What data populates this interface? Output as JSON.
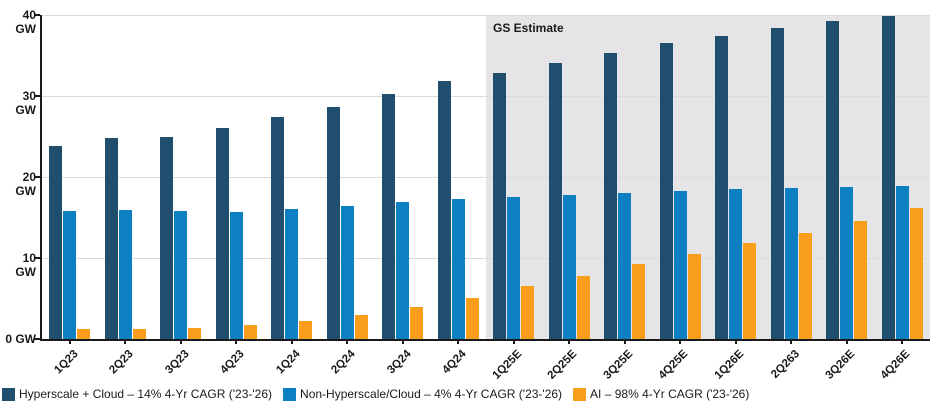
{
  "chart_data": {
    "type": "bar",
    "title": "",
    "xlabel": "",
    "ylabel": "GW",
    "ylim": [
      0,
      40
    ],
    "grid": true,
    "legend_position": "bottom-left",
    "yticks": [
      {
        "value": 0,
        "label": "0 GW"
      },
      {
        "value": 10,
        "label": "10 GW"
      },
      {
        "value": 20,
        "label": "20 GW"
      },
      {
        "value": 30,
        "label": "30 GW"
      },
      {
        "value": 40,
        "label": "40 GW"
      }
    ],
    "categories": [
      "1Q23",
      "2Q23",
      "3Q23",
      "4Q23",
      "1Q24",
      "2Q24",
      "3Q24",
      "4Q24",
      "1Q25E",
      "2Q25E",
      "3Q25E",
      "4Q25E",
      "1Q26E",
      "2Q263",
      "3Q26E",
      "4Q26E"
    ],
    "series": [
      {
        "name": "Hyperscale + Cloud – 14% 4-Yr CAGR ('23-'26)",
        "color": "#1F4E6E",
        "values": [
          23.8,
          24.8,
          25.0,
          26.1,
          27.4,
          28.6,
          30.3,
          31.8,
          32.9,
          34.1,
          35.3,
          36.5,
          37.4,
          38.4,
          39.2,
          39.9
        ]
      },
      {
        "name": "Non-Hyperscale/Cloud – 4% 4-Yr CAGR ('23-'26)",
        "color": "#0C80C2",
        "values": [
          15.8,
          15.9,
          15.8,
          15.7,
          16.0,
          16.4,
          16.9,
          17.3,
          17.5,
          17.8,
          18.0,
          18.3,
          18.5,
          18.6,
          18.8,
          18.9
        ]
      },
      {
        "name": "AI – 98% 4-Yr CAGR ('23-'26)",
        "color": "#F99E1B",
        "values": [
          1.2,
          1.2,
          1.3,
          1.7,
          2.2,
          3.0,
          3.9,
          5.1,
          6.5,
          7.8,
          9.2,
          10.5,
          11.8,
          13.1,
          14.6,
          16.2
        ]
      }
    ],
    "estimate": {
      "label": "GS Estimate",
      "start_category": "1Q25E",
      "start_index": 8,
      "background": "#E5E5E7"
    }
  }
}
